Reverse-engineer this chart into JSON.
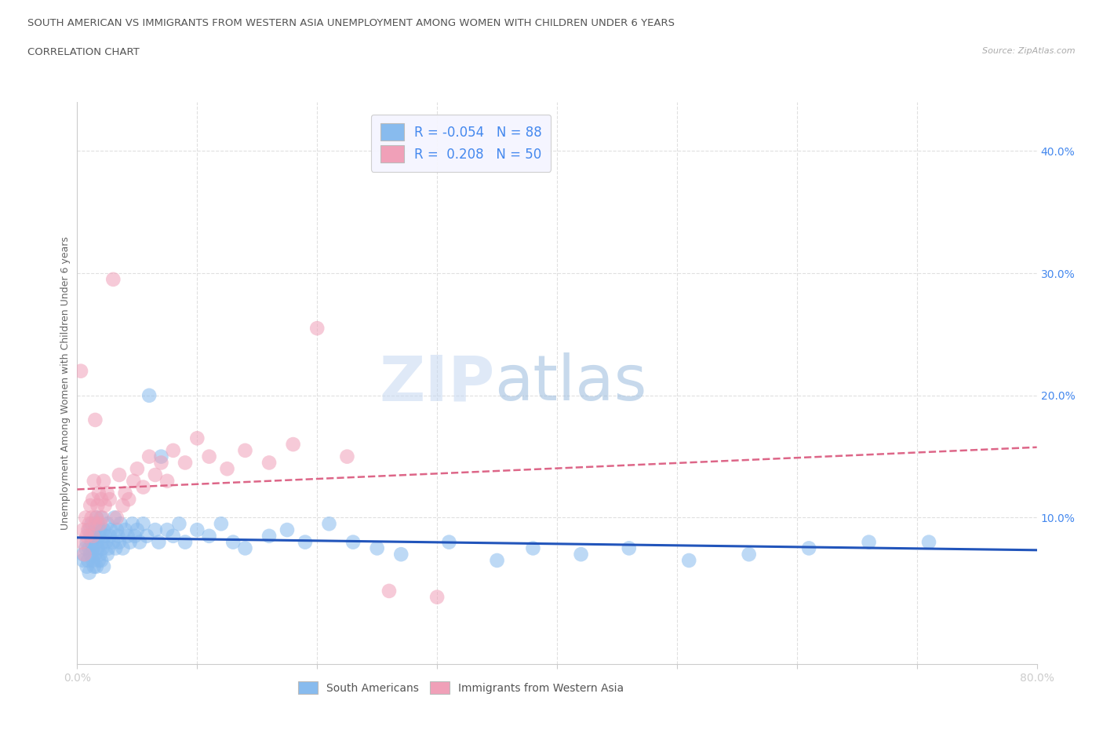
{
  "title_line1": "SOUTH AMERICAN VS IMMIGRANTS FROM WESTERN ASIA UNEMPLOYMENT AMONG WOMEN WITH CHILDREN UNDER 6 YEARS",
  "title_line2": "CORRELATION CHART",
  "source_text": "Source: ZipAtlas.com",
  "ylabel": "Unemployment Among Women with Children Under 6 years",
  "xlim": [
    0.0,
    0.8
  ],
  "ylim": [
    -0.02,
    0.44
  ],
  "yticks": [
    0.1,
    0.2,
    0.3,
    0.4
  ],
  "yticklabels": [
    "10.0%",
    "20.0%",
    "30.0%",
    "40.0%"
  ],
  "grid_color": "#e0e0e0",
  "background_color": "#ffffff",
  "title_color": "#555555",
  "axis_color": "#4488ee",
  "blue_color": "#88bbee",
  "pink_color": "#f0a0b8",
  "blue_line_color": "#2255bb",
  "pink_line_color": "#dd6688",
  "legend_R1": "-0.054",
  "legend_N1": "88",
  "legend_R2": " 0.208",
  "legend_N2": "50",
  "sa_x": [
    0.005,
    0.005,
    0.007,
    0.008,
    0.008,
    0.009,
    0.01,
    0.01,
    0.01,
    0.011,
    0.011,
    0.012,
    0.012,
    0.013,
    0.013,
    0.014,
    0.014,
    0.015,
    0.015,
    0.016,
    0.016,
    0.016,
    0.017,
    0.017,
    0.018,
    0.018,
    0.019,
    0.019,
    0.02,
    0.02,
    0.021,
    0.021,
    0.022,
    0.022,
    0.023,
    0.024,
    0.025,
    0.025,
    0.026,
    0.027,
    0.028,
    0.03,
    0.031,
    0.032,
    0.033,
    0.034,
    0.035,
    0.036,
    0.038,
    0.04,
    0.042,
    0.044,
    0.046,
    0.048,
    0.05,
    0.052,
    0.055,
    0.058,
    0.06,
    0.065,
    0.068,
    0.07,
    0.075,
    0.08,
    0.085,
    0.09,
    0.1,
    0.11,
    0.12,
    0.13,
    0.14,
    0.16,
    0.175,
    0.19,
    0.21,
    0.23,
    0.25,
    0.27,
    0.31,
    0.35,
    0.38,
    0.42,
    0.46,
    0.51,
    0.56,
    0.61,
    0.66,
    0.71
  ],
  "sa_y": [
    0.07,
    0.065,
    0.075,
    0.06,
    0.08,
    0.065,
    0.075,
    0.09,
    0.055,
    0.085,
    0.07,
    0.08,
    0.095,
    0.065,
    0.075,
    0.085,
    0.06,
    0.09,
    0.07,
    0.08,
    0.1,
    0.06,
    0.075,
    0.095,
    0.065,
    0.085,
    0.07,
    0.09,
    0.065,
    0.1,
    0.08,
    0.075,
    0.09,
    0.06,
    0.085,
    0.08,
    0.07,
    0.095,
    0.075,
    0.085,
    0.09,
    0.08,
    0.1,
    0.075,
    0.09,
    0.085,
    0.08,
    0.095,
    0.075,
    0.09,
    0.085,
    0.08,
    0.095,
    0.085,
    0.09,
    0.08,
    0.095,
    0.085,
    0.2,
    0.09,
    0.08,
    0.15,
    0.09,
    0.085,
    0.095,
    0.08,
    0.09,
    0.085,
    0.095,
    0.08,
    0.075,
    0.085,
    0.09,
    0.08,
    0.095,
    0.08,
    0.075,
    0.07,
    0.08,
    0.065,
    0.075,
    0.07,
    0.075,
    0.065,
    0.07,
    0.075,
    0.08,
    0.08
  ],
  "wa_x": [
    0.003,
    0.004,
    0.005,
    0.006,
    0.007,
    0.008,
    0.009,
    0.01,
    0.011,
    0.012,
    0.013,
    0.013,
    0.014,
    0.015,
    0.015,
    0.016,
    0.017,
    0.018,
    0.019,
    0.02,
    0.021,
    0.022,
    0.023,
    0.025,
    0.027,
    0.03,
    0.033,
    0.035,
    0.038,
    0.04,
    0.043,
    0.047,
    0.05,
    0.055,
    0.06,
    0.065,
    0.07,
    0.075,
    0.08,
    0.09,
    0.1,
    0.11,
    0.125,
    0.14,
    0.16,
    0.18,
    0.2,
    0.225,
    0.26,
    0.3
  ],
  "wa_y": [
    0.22,
    0.08,
    0.09,
    0.07,
    0.1,
    0.085,
    0.09,
    0.095,
    0.11,
    0.1,
    0.115,
    0.085,
    0.13,
    0.095,
    0.18,
    0.1,
    0.11,
    0.12,
    0.095,
    0.115,
    0.1,
    0.13,
    0.11,
    0.12,
    0.115,
    0.295,
    0.1,
    0.135,
    0.11,
    0.12,
    0.115,
    0.13,
    0.14,
    0.125,
    0.15,
    0.135,
    0.145,
    0.13,
    0.155,
    0.145,
    0.165,
    0.15,
    0.14,
    0.155,
    0.145,
    0.16,
    0.255,
    0.15,
    0.04,
    0.035
  ]
}
